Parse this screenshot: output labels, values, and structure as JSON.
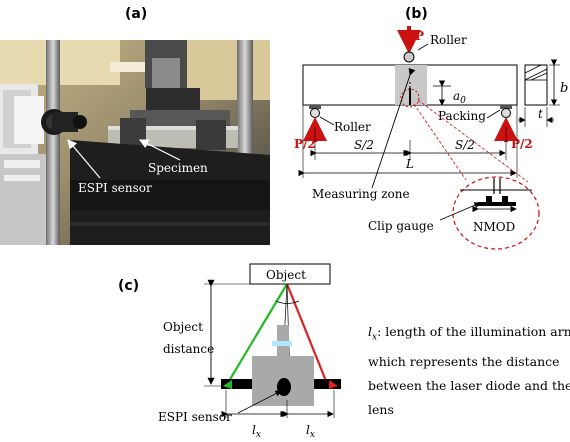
{
  "panels": {
    "a": {
      "label": "(a)",
      "annotations": {
        "specimen": "Specimen",
        "sensor": "ESPI sensor"
      }
    },
    "b": {
      "label": "(b)",
      "load_top": "P",
      "roller_top": "Roller",
      "roller_bottom": "Roller",
      "packing": "Packing",
      "load_left": "P/2",
      "load_right": "P/2",
      "notch_depth": "a",
      "notch_depth_sub": "0",
      "height": "b",
      "thickness": "t",
      "half_span_left": "S/2",
      "half_span_right": "S/2",
      "length": "L",
      "measuring_zone": "Measuring zone",
      "clip_gauge": "Clip gauge",
      "nmod": "NMOD"
    },
    "c": {
      "label": "(c)",
      "object": "Object",
      "object_distance_line1": "Object",
      "object_distance_line2": "distance",
      "sensor": "ESPI sensor",
      "arm": "l",
      "arm_sub": "x",
      "caption": {
        "symbol": "l",
        "symbol_sub": "x",
        "line1_rest": ": length of the illumination arm",
        "line2": "which represents the distance",
        "line3": "between the laser diode and the",
        "line4": "lens"
      }
    }
  },
  "colors": {
    "load_red": "#cc1111",
    "beam_red": "#dd2020",
    "beam_green": "#22bb22",
    "sensor_gray": "#a9a9a9",
    "screen_cyan": "#aee8ff"
  }
}
